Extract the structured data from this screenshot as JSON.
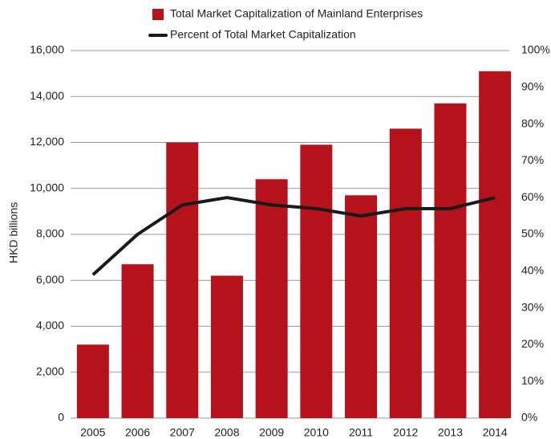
{
  "chart_data": {
    "type": "bar_line",
    "y_axis_label": "HKD billions",
    "categories": [
      "2005",
      "2006",
      "2007",
      "2008",
      "2009",
      "2010",
      "2011",
      "2012",
      "2013",
      "2014"
    ],
    "series": [
      {
        "name": "Total Market Capitalization of Mainland Enterprises",
        "type": "bar",
        "color": "#b5121b",
        "values": [
          3200,
          6700,
          12000,
          6200,
          10400,
          11900,
          9700,
          12600,
          13700,
          15100
        ]
      },
      {
        "name": "Percent of Total Market Capitalization",
        "type": "line",
        "axis": "y2",
        "color": "#1a1a1a",
        "values": [
          39,
          50,
          58,
          60,
          58,
          57,
          55,
          57,
          57,
          60
        ]
      }
    ],
    "ylim": [
      0,
      16000
    ],
    "yticks": [
      0,
      {
        "value": 2000,
        "label": "2,000"
      },
      {
        "value": 4000,
        "label": "4,000"
      },
      {
        "value": 6000,
        "label": "6,000"
      },
      {
        "value": 8000,
        "label": "8,000"
      },
      {
        "value": 10000,
        "label": "10,000"
      },
      {
        "value": 12000,
        "label": "12,000"
      },
      {
        "value": 14000,
        "label": "14,000"
      },
      {
        "value": 16000,
        "label": "16,000"
      }
    ],
    "y2lim": [
      0,
      100
    ],
    "y2ticks": [
      {
        "value": 0,
        "label": "0%"
      },
      {
        "value": 10,
        "label": "10%"
      },
      {
        "value": 20,
        "label": "20%"
      },
      {
        "value": 30,
        "label": "30%"
      },
      {
        "value": 40,
        "label": "40%"
      },
      {
        "value": 50,
        "label": "50%"
      },
      {
        "value": 60,
        "label": "60%"
      },
      {
        "value": 70,
        "label": "70%"
      },
      {
        "value": 80,
        "label": "80%"
      },
      {
        "value": 90,
        "label": "90%"
      },
      {
        "value": 100,
        "label": "100%"
      }
    ],
    "grid": true
  }
}
